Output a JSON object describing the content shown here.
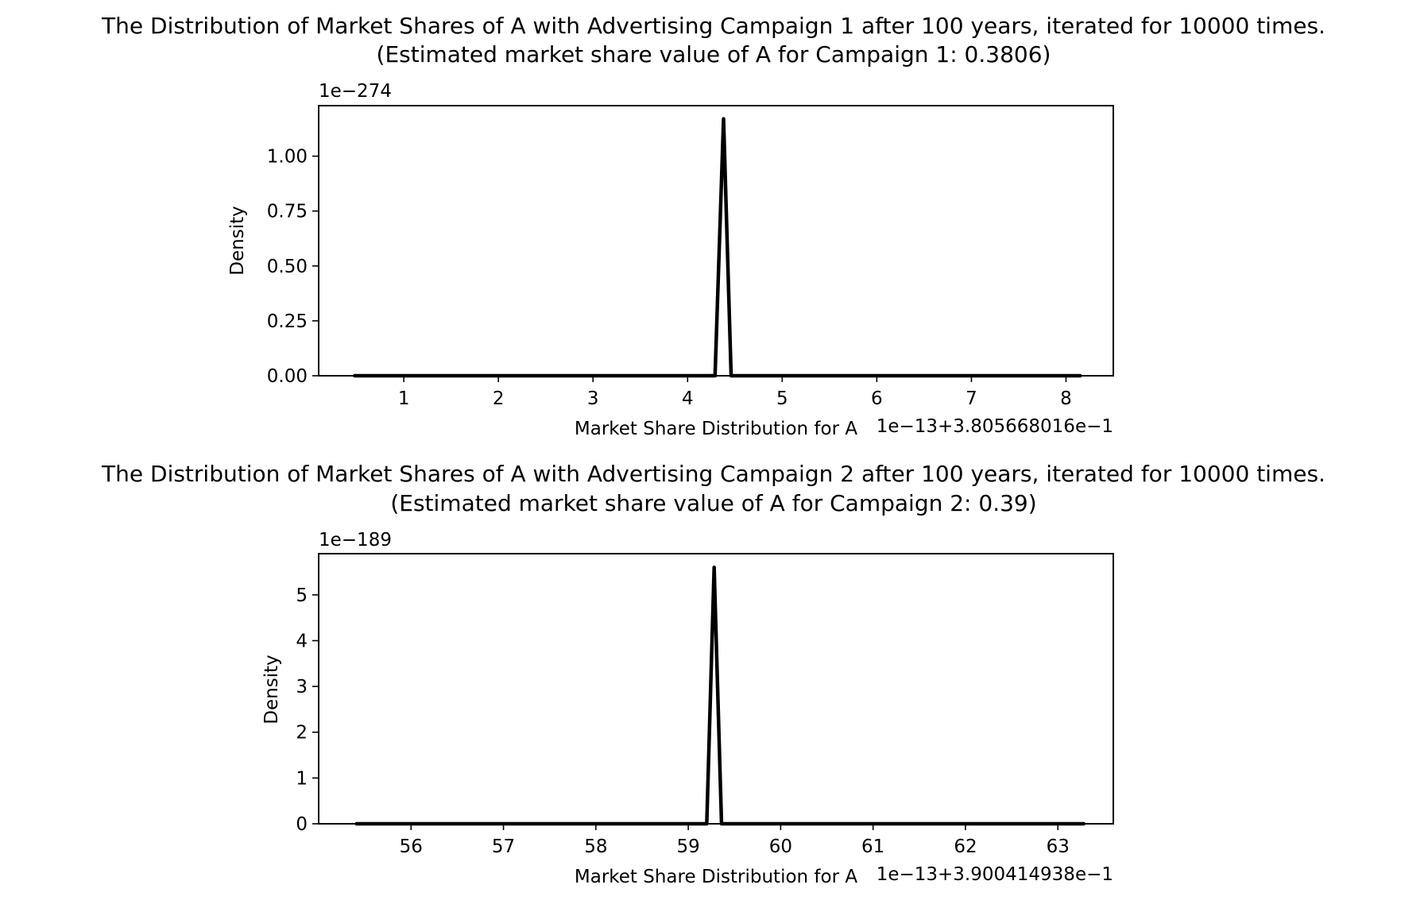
{
  "chart_data": [
    {
      "type": "line",
      "title": "The Distribution of Market Shares of A with Advertising Campaign 1 after 100 years, iterated for 10000 times.",
      "subtitle": "(Estimated market share value of A for Campaign 1: 0.3806)",
      "xlabel": "Market Share Distribution for A",
      "ylabel": "Density",
      "x_offset_label": "1e−13+3.805668016e−1",
      "y_scale_label": "1e−274",
      "xlim": [
        0.1,
        8.5
      ],
      "ylim": [
        0,
        1.23
      ],
      "xticks": [
        1,
        2,
        3,
        4,
        5,
        6,
        7,
        8
      ],
      "xtick_labels": [
        "1",
        "2",
        "3",
        "4",
        "5",
        "6",
        "7",
        "8"
      ],
      "yticks": [
        0,
        0.25,
        0.5,
        0.75,
        1.0
      ],
      "ytick_labels": [
        "0.00",
        "0.25",
        "0.50",
        "0.75",
        "1.00"
      ],
      "grid": false,
      "series": [
        {
          "color": "#000000",
          "x": [
            0.48,
            4.29,
            4.38,
            4.46,
            8.15
          ],
          "y": [
            0,
            0,
            1.17,
            0,
            0
          ]
        }
      ]
    },
    {
      "type": "line",
      "title": "The Distribution of Market Shares of A with Advertising Campaign 2 after 100 years, iterated for 10000 times.",
      "subtitle": "(Estimated market share value of A for Campaign 2: 0.39)",
      "xlabel": "Market Share Distribution for A",
      "ylabel": "Density",
      "x_offset_label": "1e−13+3.900414938e−1",
      "y_scale_label": "1e−189",
      "xlim": [
        55.0,
        63.6
      ],
      "ylim": [
        0,
        5.9
      ],
      "xticks": [
        56,
        57,
        58,
        59,
        60,
        61,
        62,
        63
      ],
      "xtick_labels": [
        "56",
        "57",
        "58",
        "59",
        "60",
        "61",
        "62",
        "63"
      ],
      "yticks": [
        0,
        1,
        2,
        3,
        4,
        5
      ],
      "ytick_labels": [
        "0",
        "1",
        "2",
        "3",
        "4",
        "5"
      ],
      "grid": false,
      "series": [
        {
          "color": "#000000",
          "x": [
            55.41,
            59.2,
            59.28,
            59.36,
            63.28
          ],
          "y": [
            0,
            0,
            5.6,
            0,
            0
          ]
        }
      ]
    }
  ]
}
